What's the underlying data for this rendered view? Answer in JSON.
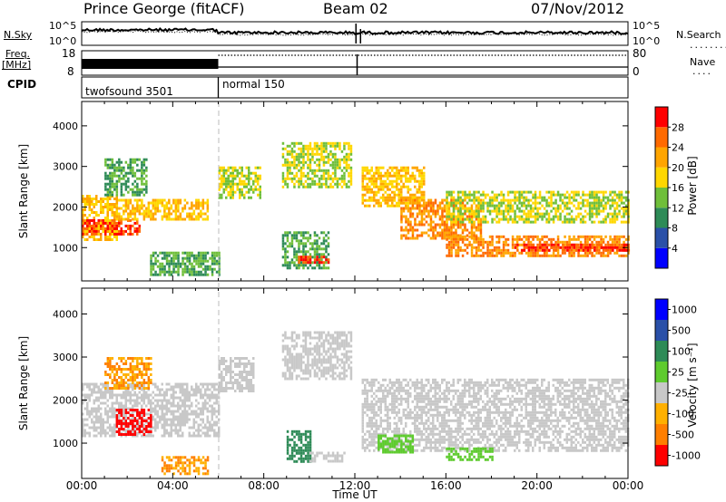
{
  "header": {
    "station": "Prince George (fitACF)",
    "beam": "Beam 02",
    "date": "07/Nov/2012"
  },
  "side_labels": {
    "nsky": "N.Sky",
    "nsearch": "N.Search",
    "freq_line1": "Freq.",
    "freq_line2": "[MHz]",
    "nave": "Nave",
    "cpid": "CPID"
  },
  "top_panels": {
    "noise_ticks_left": [
      "10^5",
      "10^0"
    ],
    "noise_ticks_right": [
      "10^5",
      "10^0"
    ],
    "freq_ticks_left": [
      "18",
      "8"
    ],
    "nave_ticks_right": [
      "80",
      "0"
    ]
  },
  "cpid_programs": [
    {
      "name": "twofsound 3501",
      "start_hour": 0,
      "end_hour": 6
    },
    {
      "name": "normal 150",
      "start_hour": 6,
      "end_hour": 24
    }
  ],
  "colors": {
    "power_scale": [
      "#0000ff",
      "#2a50a8",
      "#2e8b57",
      "#6fbf3a",
      "#ffd700",
      "#ffa500",
      "#ff6a00",
      "#ff0000"
    ],
    "velocity_scale": [
      "#0000ff",
      "#2a50a8",
      "#2e8b57",
      "#5ecb2e",
      "#c8c8c8",
      "#ffb000",
      "#ff7f00",
      "#ff0000"
    ],
    "frame": "#000000"
  },
  "chart_data": [
    {
      "type": "heatmap",
      "name": "power",
      "xlabel": "",
      "ylabel": "Slant Range [km]",
      "x_ticks": [
        "00:00",
        "04:00",
        "08:00",
        "12:00",
        "16:00",
        "20:00",
        "00:00"
      ],
      "xlim": [
        0,
        24
      ],
      "y_ticks": [
        1000,
        2000,
        3000,
        4000
      ],
      "ylim": [
        180,
        4600
      ],
      "colorbar": {
        "label": "Power [dB]",
        "ticks": [
          4,
          8,
          12,
          16,
          20,
          24,
          28
        ],
        "range": [
          0,
          32
        ]
      },
      "echo_regions": [
        {
          "x": [
            0.0,
            1.5
          ],
          "y": [
            1200,
            2300
          ],
          "value": 20
        },
        {
          "x": [
            0.0,
            2.5
          ],
          "y": [
            1300,
            1700
          ],
          "value": 28
        },
        {
          "x": [
            1.0,
            2.8
          ],
          "y": [
            2300,
            3200
          ],
          "value": 12
        },
        {
          "x": [
            1.5,
            5.5
          ],
          "y": [
            1700,
            2200
          ],
          "value": 20
        },
        {
          "x": [
            3.0,
            6.0
          ],
          "y": [
            300,
            900
          ],
          "value": 12
        },
        {
          "x": [
            6.0,
            7.8
          ],
          "y": [
            2200,
            3000
          ],
          "value": 16
        },
        {
          "x": [
            8.8,
            11.8
          ],
          "y": [
            2500,
            3600
          ],
          "value": 16
        },
        {
          "x": [
            8.8,
            10.8
          ],
          "y": [
            500,
            1400
          ],
          "value": 12
        },
        {
          "x": [
            9.5,
            10.8
          ],
          "y": [
            600,
            800
          ],
          "value": 28
        },
        {
          "x": [
            12.3,
            15.0
          ],
          "y": [
            2000,
            3000
          ],
          "value": 20
        },
        {
          "x": [
            14.0,
            17.5
          ],
          "y": [
            1200,
            2200
          ],
          "value": 24
        },
        {
          "x": [
            16.0,
            24.0
          ],
          "y": [
            800,
            1300
          ],
          "value": 24
        },
        {
          "x": [
            19.0,
            24.0
          ],
          "y": [
            900,
            1100
          ],
          "value": 28
        },
        {
          "x": [
            16.0,
            24.0
          ],
          "y": [
            1600,
            2400
          ],
          "value": 16
        }
      ]
    },
    {
      "type": "heatmap",
      "name": "velocity",
      "xlabel": "Time UT",
      "ylabel": "Slant Range [km]",
      "x_ticks": [
        "00:00",
        "04:00",
        "08:00",
        "12:00",
        "16:00",
        "20:00",
        "00:00"
      ],
      "xlim": [
        0,
        24
      ],
      "y_ticks": [
        1000,
        2000,
        3000,
        4000
      ],
      "ylim": [
        180,
        4600
      ],
      "colorbar": {
        "label": "Velocity [m s⁻¹]",
        "ticks": [
          1000,
          500,
          100,
          25,
          -25,
          -100,
          -500,
          -1000
        ]
      },
      "echo_regions": [
        {
          "x": [
            0.0,
            6.0
          ],
          "y": [
            1200,
            2400
          ],
          "value": 0
        },
        {
          "x": [
            1.5,
            3.0
          ],
          "y": [
            1200,
            1800
          ],
          "value": -800
        },
        {
          "x": [
            1.0,
            3.0
          ],
          "y": [
            2300,
            3000
          ],
          "value": -100
        },
        {
          "x": [
            6.0,
            7.5
          ],
          "y": [
            2200,
            3000
          ],
          "value": 0
        },
        {
          "x": [
            8.8,
            11.8
          ],
          "y": [
            2500,
            3600
          ],
          "value": 0
        },
        {
          "x": [
            9.0,
            10.0
          ],
          "y": [
            600,
            1300
          ],
          "value": 300
        },
        {
          "x": [
            10.0,
            11.5
          ],
          "y": [
            600,
            800
          ],
          "value": 0
        },
        {
          "x": [
            12.3,
            24.0
          ],
          "y": [
            800,
            2500
          ],
          "value": 0
        },
        {
          "x": [
            13.0,
            14.5
          ],
          "y": [
            800,
            1200
          ],
          "value": 80
        },
        {
          "x": [
            16.0,
            18.0
          ],
          "y": [
            600,
            900
          ],
          "value": 80
        },
        {
          "x": [
            3.5,
            5.5
          ],
          "y": [
            300,
            700
          ],
          "value": -100
        }
      ]
    }
  ]
}
